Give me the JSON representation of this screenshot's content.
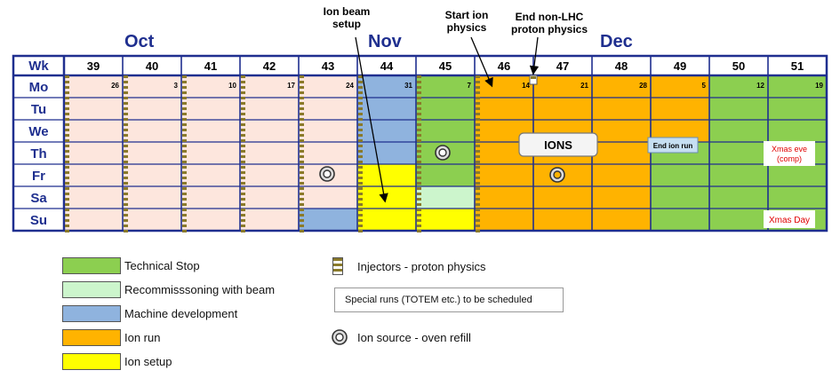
{
  "months": [
    {
      "label": "Oct"
    },
    {
      "label": "Nov"
    },
    {
      "label": "Dec"
    }
  ],
  "annotations": {
    "ion_beam_setup": [
      "Ion beam",
      "setup"
    ],
    "start_ion_physics": [
      "Start ion",
      "physics"
    ],
    "end_non_lhc": [
      "End non-LHC",
      "proton physics"
    ]
  },
  "table": {
    "wk_label": "Wk",
    "weeks": [
      "39",
      "40",
      "41",
      "42",
      "43",
      "44",
      "45",
      "46",
      "47",
      "48",
      "49",
      "50",
      "51"
    ],
    "days": [
      "Mo",
      "Tu",
      "We",
      "Th",
      "Fr",
      "Sa",
      "Su"
    ],
    "monday_dates": [
      "26",
      "3",
      "10",
      "17",
      "24",
      "31",
      "7",
      "14",
      "21",
      "28",
      "5",
      "12",
      "19"
    ]
  },
  "labels": {
    "ions": "IONS",
    "end_ion_run": "End ion run",
    "xmas_eve": [
      "Xmas eve",
      "(comp)"
    ],
    "xmas_day": "Xmas Day"
  },
  "colors": {
    "technical_stop": "#8ccf50",
    "recommissioning": "#ccf5cc",
    "machine_development": "#8fb3de",
    "ion_run": "#ffb300",
    "ion_setup": "#ffff00",
    "default_cell": "#fde6dd",
    "grid": "#1f2f8f",
    "injector_checker": "#8a7a2a",
    "month_text": "#1f2f8f",
    "xmas_text": "#e00000"
  },
  "legend": {
    "left": [
      {
        "label": "Technical Stop",
        "color_key": "technical_stop"
      },
      {
        "label": "Recommisssoning with beam",
        "color_key": "recommissioning"
      },
      {
        "label": "Machine development",
        "color_key": "machine_development"
      },
      {
        "label": "Ion run",
        "color_key": "ion_run"
      },
      {
        "label": "Ion setup",
        "color_key": "ion_setup"
      }
    ],
    "injectors": "Injectors - proton physics",
    "special_runs": "Special runs (TOTEM etc.) to be scheduled",
    "ion_source": "Ion source - oven refill"
  }
}
